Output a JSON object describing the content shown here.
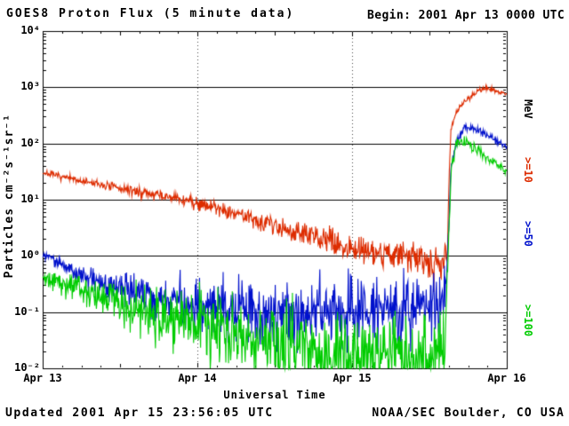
{
  "footer": {
    "updated": "Updated 2001 Apr 15 23:56:05 UTC",
    "source": "NOAA/SEC Boulder, CO USA"
  },
  "chart_data": {
    "type": "line",
    "title": "GOES8 Proton Flux (5 minute data)",
    "begin_label": "Begin: 2001 Apr 13 0000 UTC",
    "xlabel": "Universal Time",
    "ylabel": "Particles cm⁻²s⁻¹sr⁻¹",
    "x_tick_labels": [
      "Apr 13",
      "Apr 14",
      "Apr 15",
      "Apr 16"
    ],
    "y_tick_labels": [
      "10⁴",
      "10³",
      "10²",
      "10¹",
      "10⁰",
      "10⁻¹",
      "10⁻²"
    ],
    "y_tick_exponents": [
      4,
      3,
      2,
      1,
      0,
      -1,
      -2
    ],
    "axes": {
      "x_days": [
        0,
        3
      ],
      "y_log10": [
        -2,
        4
      ],
      "y_scale": "log",
      "grid_horizontal_decades": true,
      "grid_vertical_day_dotted": true
    },
    "legend": {
      "unit": "MeV",
      "entries": [
        {
          "label": ">=10",
          "color": "#dd2c00"
        },
        {
          "label": ">=50",
          "color": "#0011cc"
        },
        {
          "label": ">=100",
          "color": "#00cc00"
        }
      ]
    },
    "sample_minutes": 5,
    "floor_log10": -2,
    "noise_seed": 7,
    "series": [
      {
        "name": ">=10 MeV proton flux",
        "color": "#dd2c00",
        "anchors_log10": [
          [
            0,
            1.48
          ],
          [
            0.2,
            1.36
          ],
          [
            0.5,
            1.2
          ],
          [
            0.8,
            1.05
          ],
          [
            1.0,
            0.95
          ],
          [
            1.2,
            0.8
          ],
          [
            1.5,
            0.55
          ],
          [
            1.8,
            0.3
          ],
          [
            2.0,
            0.15
          ],
          [
            2.2,
            0.05
          ],
          [
            2.45,
            -0.05
          ],
          [
            2.58,
            -0.15
          ],
          [
            2.615,
            -0.1
          ],
          [
            2.625,
            1.2
          ],
          [
            2.64,
            2.3
          ],
          [
            2.68,
            2.6
          ],
          [
            2.75,
            2.8
          ],
          [
            2.82,
            2.95
          ],
          [
            2.87,
            3.0
          ],
          [
            2.92,
            2.93
          ],
          [
            3,
            2.88
          ]
        ],
        "noise_log10": [
          [
            0,
            0.025
          ],
          [
            0.8,
            0.05
          ],
          [
            1.5,
            0.09
          ],
          [
            2.0,
            0.13
          ],
          [
            2.4,
            0.16
          ],
          [
            2.6,
            0.18
          ],
          [
            2.62,
            0.03
          ],
          [
            3,
            0.02
          ]
        ]
      },
      {
        "name": ">=50 MeV proton flux",
        "color": "#0011cc",
        "anchors_log10": [
          [
            0,
            0.0
          ],
          [
            0.1,
            -0.1
          ],
          [
            0.25,
            -0.35
          ],
          [
            0.4,
            -0.5
          ],
          [
            0.6,
            -0.65
          ],
          [
            0.8,
            -0.78
          ],
          [
            1.0,
            -0.85
          ],
          [
            1.3,
            -0.95
          ],
          [
            1.6,
            -1.0
          ],
          [
            2.0,
            -1.0
          ],
          [
            2.3,
            -0.98
          ],
          [
            2.5,
            -0.95
          ],
          [
            2.6,
            -0.85
          ],
          [
            2.625,
            0.5
          ],
          [
            2.64,
            1.6
          ],
          [
            2.68,
            2.05
          ],
          [
            2.73,
            2.3
          ],
          [
            2.8,
            2.25
          ],
          [
            2.9,
            2.1
          ],
          [
            3,
            1.95
          ]
        ],
        "noise_log10": [
          [
            0,
            0.04
          ],
          [
            0.4,
            0.12
          ],
          [
            0.8,
            0.2
          ],
          [
            1.2,
            0.26
          ],
          [
            1.6,
            0.3
          ],
          [
            2.6,
            0.3
          ],
          [
            2.62,
            0.04
          ],
          [
            3,
            0.03
          ]
        ]
      },
      {
        "name": ">=100 MeV proton flux",
        "color": "#00cc00",
        "anchors_log10": [
          [
            0,
            -0.35
          ],
          [
            0.15,
            -0.5
          ],
          [
            0.3,
            -0.65
          ],
          [
            0.5,
            -0.85
          ],
          [
            0.7,
            -1.0
          ],
          [
            0.9,
            -1.15
          ],
          [
            1.1,
            -1.3
          ],
          [
            1.4,
            -1.5
          ],
          [
            1.7,
            -1.65
          ],
          [
            2.0,
            -1.75
          ],
          [
            2.3,
            -1.8
          ],
          [
            2.5,
            -1.8
          ],
          [
            2.6,
            -1.7
          ],
          [
            2.625,
            0.3
          ],
          [
            2.64,
            1.5
          ],
          [
            2.67,
            1.95
          ],
          [
            2.7,
            2.08
          ],
          [
            2.78,
            1.95
          ],
          [
            2.85,
            1.8
          ],
          [
            2.92,
            1.65
          ],
          [
            3,
            1.5
          ]
        ],
        "noise_log10": [
          [
            0,
            0.08
          ],
          [
            0.4,
            0.18
          ],
          [
            0.8,
            0.26
          ],
          [
            1.2,
            0.32
          ],
          [
            1.6,
            0.35
          ],
          [
            2.6,
            0.35
          ],
          [
            2.62,
            0.05
          ],
          [
            3,
            0.04
          ]
        ]
      }
    ]
  }
}
